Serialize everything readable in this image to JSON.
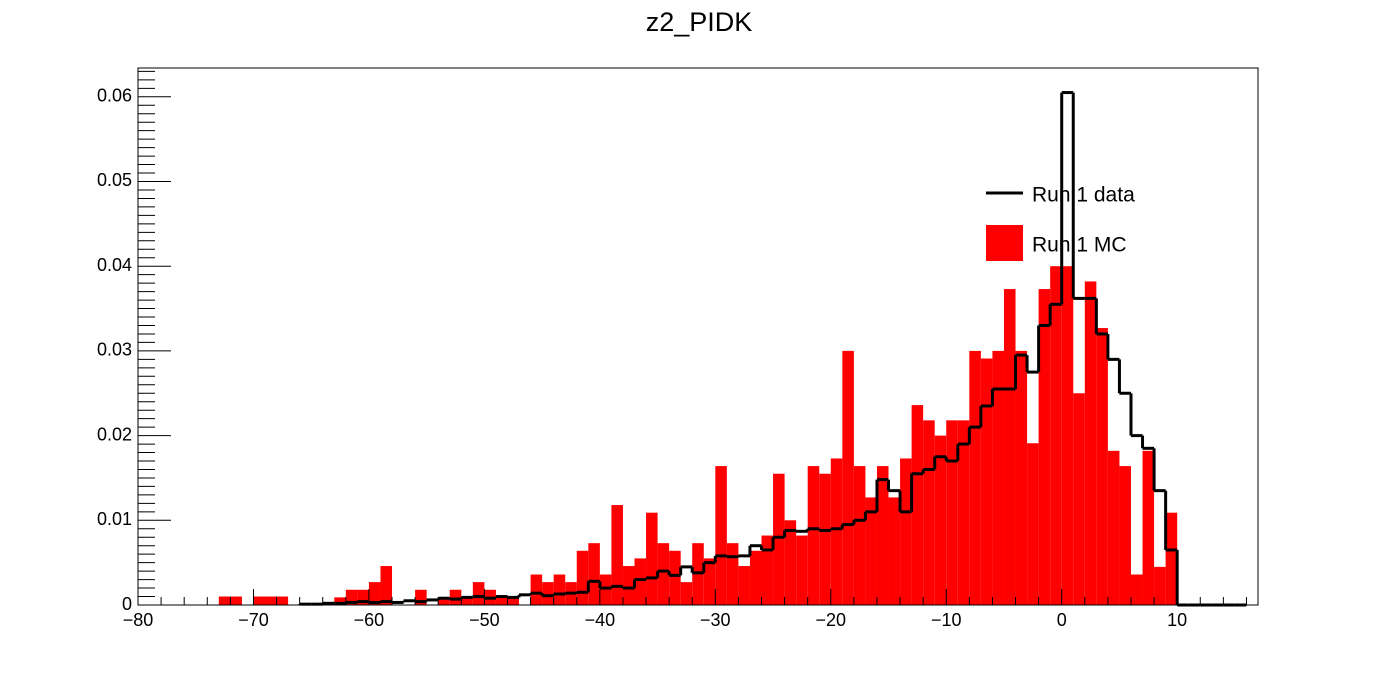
{
  "chart_data": {
    "type": "histogram",
    "title": "z2_PIDK",
    "bins": [
      -80,
      -79,
      -78,
      -77,
      -76,
      -75,
      -74,
      -73,
      -72,
      -71,
      -70,
      -69,
      -68,
      -67,
      -66,
      -65,
      -64,
      -63,
      -62,
      -61,
      -60,
      -59,
      -58,
      -57,
      -56,
      -55,
      -54,
      -53,
      -52,
      -51,
      -50,
      -49,
      -48,
      -47,
      -46,
      -45,
      -44,
      -43,
      -42,
      -41,
      -40,
      -39,
      -38,
      -37,
      -36,
      -35,
      -34,
      -33,
      -32,
      -31,
      -30,
      -29,
      -28,
      -27,
      -26,
      -25,
      -24,
      -23,
      -22,
      -21,
      -20,
      -19,
      -18,
      -17,
      -16,
      -15,
      -14,
      -13,
      -12,
      -11,
      -10,
      -9,
      -8,
      -7,
      -6,
      -5,
      -4,
      -3,
      -2,
      -1,
      0,
      1,
      2,
      3,
      4,
      5,
      6,
      7,
      8,
      9,
      10,
      11,
      12,
      13,
      14,
      15,
      16
    ],
    "series": [
      {
        "name": "Run 1 MC",
        "color": "#ff0000",
        "style": "filled",
        "values": [
          0,
          0,
          0,
          0,
          0,
          0,
          0,
          0.001,
          0.001,
          0,
          0.001,
          0.001,
          0.001,
          0,
          0,
          0,
          0,
          0.0009,
          0.0018,
          0.0018,
          0.0027,
          0.0046,
          0,
          0,
          0.0018,
          0,
          0.0009,
          0.0018,
          0.0009,
          0.0027,
          0.0018,
          0.0009,
          0.0009,
          0,
          0.0036,
          0.0027,
          0.0036,
          0.0027,
          0.0064,
          0.0073,
          0.0036,
          0.0118,
          0.0046,
          0.0055,
          0.0109,
          0.0073,
          0.0064,
          0.0027,
          0.0073,
          0.0055,
          0.0164,
          0.0073,
          0.0046,
          0.0064,
          0.0082,
          0.0155,
          0.01,
          0.0082,
          0.0164,
          0.0155,
          0.0173,
          0.03,
          0.0164,
          0.0127,
          0.0164,
          0.0127,
          0.0173,
          0.0236,
          0.0218,
          0.02,
          0.0218,
          0.0218,
          0.03,
          0.0291,
          0.03,
          0.0373,
          0.03,
          0.0191,
          0.0373,
          0.04,
          0.04,
          0.025,
          0.0382,
          0.0327,
          0.0182,
          0.0164,
          0.0036,
          0.0182,
          0.0045,
          0.0109,
          0,
          0,
          0,
          0,
          0,
          0
        ]
      },
      {
        "name": "Run 1 data",
        "color": "#000000",
        "style": "step",
        "values": [
          null,
          null,
          null,
          null,
          null,
          null,
          null,
          null,
          null,
          null,
          null,
          null,
          null,
          null,
          0.0001,
          0.0001,
          0.0002,
          0.0002,
          0.0003,
          0.0004,
          0.0003,
          0.0004,
          0.0003,
          0.0005,
          0.0004,
          0.0006,
          0.0008,
          0.0007,
          0.0009,
          0.001,
          0.0008,
          0.001,
          0.0009,
          0.0012,
          0.0014,
          0.0011,
          0.0013,
          0.0014,
          0.0015,
          0.0028,
          0.002,
          0.0022,
          0.002,
          0.003,
          0.0032,
          0.004,
          0.0035,
          0.0045,
          0.0038,
          0.005,
          0.0058,
          0.0057,
          0.0058,
          0.007,
          0.0065,
          0.008,
          0.0088,
          0.0087,
          0.009,
          0.0088,
          0.009,
          0.0095,
          0.01,
          0.011,
          0.0148,
          0.0135,
          0.011,
          0.0155,
          0.016,
          0.0175,
          0.017,
          0.019,
          0.021,
          0.0235,
          0.0255,
          0.0255,
          0.0295,
          0.0275,
          0.033,
          0.0355,
          0.0605,
          0.0362,
          0.0362,
          0.032,
          0.029,
          0.025,
          0.02,
          0.0185,
          0.0135,
          0.0065,
          0,
          0,
          0,
          0,
          0,
          0
        ]
      }
    ],
    "xlim": [
      -80,
      17
    ],
    "ylim": [
      0,
      0.0634
    ],
    "xticks": [
      {
        "value": -80,
        "label": "−80"
      },
      {
        "value": -70,
        "label": "−70"
      },
      {
        "value": -60,
        "label": "−60"
      },
      {
        "value": -50,
        "label": "−50"
      },
      {
        "value": -40,
        "label": "−40"
      },
      {
        "value": -30,
        "label": "−30"
      },
      {
        "value": -20,
        "label": "−20"
      },
      {
        "value": -10,
        "label": "−10"
      },
      0,
      10
    ],
    "yticks": [
      0,
      0.01,
      0.02,
      0.03,
      0.04,
      0.05,
      0.06
    ],
    "legend": "upper right",
    "grid": false
  }
}
